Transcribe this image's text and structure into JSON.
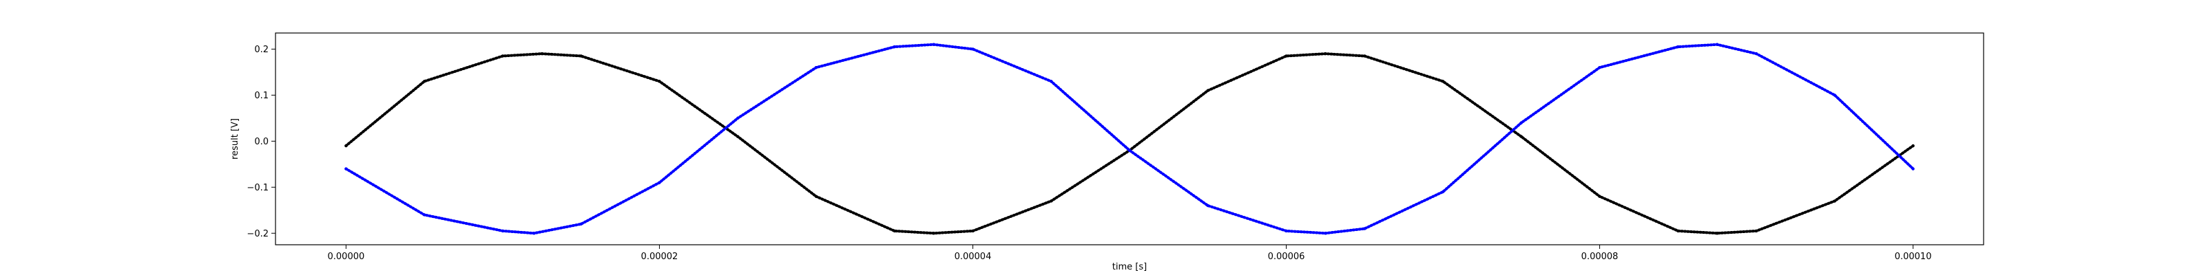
{
  "chart_data": {
    "type": "scatter",
    "title": "",
    "xlabel": "time [s]",
    "ylabel": "result [V]",
    "xlim": [
      -4.5e-06,
      0.0001045
    ],
    "ylim": [
      -0.225,
      0.235
    ],
    "grid": false,
    "x_ticks": [
      {
        "value": 0.0,
        "label": "0.00000"
      },
      {
        "value": 2e-05,
        "label": "0.00002"
      },
      {
        "value": 4e-05,
        "label": "0.00004"
      },
      {
        "value": 6e-05,
        "label": "0.00006"
      },
      {
        "value": 8e-05,
        "label": "0.00008"
      },
      {
        "value": 0.0001,
        "label": "0.00010"
      }
    ],
    "y_ticks": [
      {
        "value": -0.2,
        "label": "−0.2"
      },
      {
        "value": -0.1,
        "label": "−0.1"
      },
      {
        "value": 0.0,
        "label": "0.0"
      },
      {
        "value": 0.1,
        "label": "0.1"
      },
      {
        "value": 0.2,
        "label": "0.2"
      }
    ],
    "series": [
      {
        "color": "#000000",
        "x": [
          0.0,
          5e-06,
          1e-05,
          1.25e-05,
          1.5e-05,
          2e-05,
          2.5e-05,
          3e-05,
          3.5e-05,
          3.75e-05,
          4e-05,
          4.5e-05,
          5e-05,
          5.5e-05,
          6e-05,
          6.25e-05,
          6.5e-05,
          7e-05,
          7.5e-05,
          8e-05,
          8.5e-05,
          8.75e-05,
          9e-05,
          9.5e-05,
          0.0001
        ],
        "y": [
          -0.01,
          0.13,
          0.185,
          0.19,
          0.185,
          0.13,
          0.01,
          -0.12,
          -0.195,
          -0.2,
          -0.195,
          -0.13,
          -0.02,
          0.11,
          0.185,
          0.19,
          0.185,
          0.13,
          0.01,
          -0.12,
          -0.195,
          -0.2,
          -0.195,
          -0.13,
          -0.01
        ]
      },
      {
        "color": "#0000ff",
        "x": [
          0.0,
          5e-06,
          1e-05,
          1.2e-05,
          1.5e-05,
          2e-05,
          2.5e-05,
          3e-05,
          3.5e-05,
          3.75e-05,
          4e-05,
          4.5e-05,
          5e-05,
          5.5e-05,
          6e-05,
          6.25e-05,
          6.5e-05,
          7e-05,
          7.5e-05,
          8e-05,
          8.5e-05,
          8.75e-05,
          9e-05,
          9.5e-05,
          0.0001
        ],
        "y": [
          -0.06,
          -0.16,
          -0.195,
          -0.2,
          -0.18,
          -0.09,
          0.05,
          0.16,
          0.205,
          0.21,
          0.2,
          0.13,
          -0.02,
          -0.14,
          -0.195,
          -0.2,
          -0.19,
          -0.11,
          0.04,
          0.16,
          0.205,
          0.21,
          0.19,
          0.1,
          -0.06
        ]
      }
    ]
  }
}
